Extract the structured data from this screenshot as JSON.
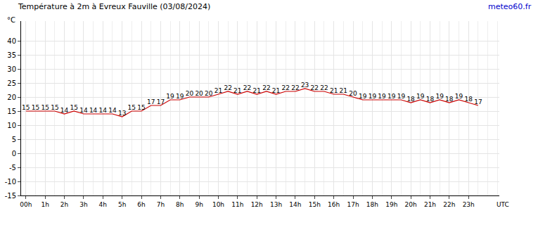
{
  "chart_data": {
    "type": "line",
    "title": "Température à 2m à Evreux Fauville (03/08/2024)",
    "y_label": "°C",
    "x_label": "UTC",
    "annotations": [
      "meteo60.fr"
    ],
    "x": [
      0,
      0.5,
      1,
      1.5,
      2,
      2.5,
      3,
      3.5,
      4,
      4.5,
      5,
      5.5,
      6,
      6.5,
      7,
      7.5,
      8,
      8.5,
      9,
      9.5,
      10,
      10.5,
      11,
      11.5,
      12,
      12.5,
      13,
      13.5,
      14,
      14.5,
      15,
      15.5,
      16,
      16.5,
      17,
      17.5,
      18,
      18.5,
      19,
      19.5,
      20,
      20.5,
      21,
      21.5,
      22,
      22.5,
      23,
      23.5
    ],
    "values": [
      15,
      15,
      15,
      15,
      14,
      15,
      14,
      14,
      14,
      14,
      13,
      15,
      15,
      17,
      17,
      19,
      19,
      20,
      20,
      20,
      21,
      22,
      21,
      22,
      21,
      22,
      21,
      22,
      22,
      23,
      22,
      22,
      21,
      21,
      20,
      19,
      19,
      19,
      19,
      19,
      18,
      19,
      18,
      19,
      18,
      19,
      18,
      17
    ],
    "color": "#cc0000",
    "data_labels": true,
    "grid": true,
    "xlim": [
      -0.25,
      24.6
    ],
    "xticks": [
      {
        "value": 0,
        "label": "00h"
      },
      {
        "value": 1,
        "label": "1h"
      },
      {
        "value": 2,
        "label": "2h"
      },
      {
        "value": 3,
        "label": "3h"
      },
      {
        "value": 4,
        "label": "4h"
      },
      {
        "value": 5,
        "label": "5h"
      },
      {
        "value": 6,
        "label": "6h"
      },
      {
        "value": 7,
        "label": "7h"
      },
      {
        "value": 8,
        "label": "8h"
      },
      {
        "value": 9,
        "label": "9h"
      },
      {
        "value": 10,
        "label": "10h"
      },
      {
        "value": 11,
        "label": "11h"
      },
      {
        "value": 12,
        "label": "12h"
      },
      {
        "value": 13,
        "label": "13h"
      },
      {
        "value": 14,
        "label": "14h"
      },
      {
        "value": 15,
        "label": "15h"
      },
      {
        "value": 16,
        "label": "16h"
      },
      {
        "value": 17,
        "label": "17h"
      },
      {
        "value": 18,
        "label": "18h"
      },
      {
        "value": 19,
        "label": "19h"
      },
      {
        "value": 20,
        "label": "20h"
      },
      {
        "value": 21,
        "label": "21h"
      },
      {
        "value": 22,
        "label": "22h"
      },
      {
        "value": 23,
        "label": "23h"
      }
    ],
    "ylim": [
      -15,
      47
    ],
    "yticks": [
      -15,
      -10,
      -5,
      0,
      5,
      10,
      15,
      20,
      25,
      30,
      35,
      40
    ]
  }
}
